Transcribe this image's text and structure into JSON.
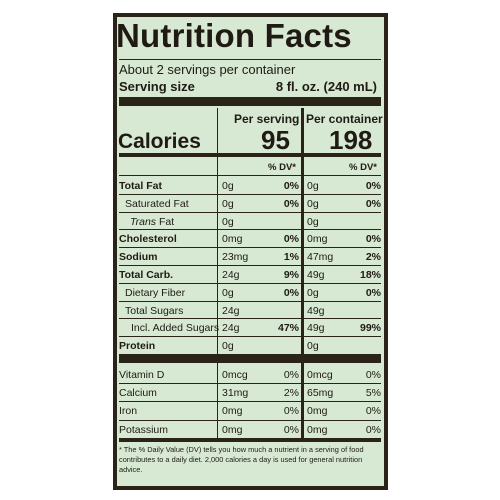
{
  "title": "Nutrition Facts",
  "servings_per_container": "About 2 servings per container",
  "serving_size_label": "Serving size",
  "serving_size_value": "8 fl. oz. (240 mL)",
  "col_headers": {
    "per_serving": "Per serving",
    "per_container": "Per container"
  },
  "calories": {
    "label": "Calories",
    "per_serving": "95",
    "per_container": "198"
  },
  "dv_header": "% DV*",
  "nutrients": [
    {
      "name": "Total Fat",
      "s_amt": "0g",
      "s_dv": "0%",
      "c_amt": "0g",
      "c_dv": "0%"
    },
    {
      "name": "Saturated Fat",
      "s_amt": "0g",
      "s_dv": "0%",
      "c_amt": "0g",
      "c_dv": "0%"
    },
    {
      "name_prefix": "Trans",
      "name": " Fat",
      "s_amt": "0g",
      "s_dv": "",
      "c_amt": "0g",
      "c_dv": ""
    },
    {
      "name": "Cholesterol",
      "s_amt": "0mg",
      "s_dv": "0%",
      "c_amt": "0mg",
      "c_dv": "0%"
    },
    {
      "name": "Sodium",
      "s_amt": "23mg",
      "s_dv": "1%",
      "c_amt": "47mg",
      "c_dv": "2%"
    },
    {
      "name": "Total Carb.",
      "s_amt": "24g",
      "s_dv": "9%",
      "c_amt": "49g",
      "c_dv": "18%"
    },
    {
      "name": "Dietary Fiber",
      "s_amt": "0g",
      "s_dv": "0%",
      "c_amt": "0g",
      "c_dv": "0%"
    },
    {
      "name": "Total Sugars",
      "s_amt": "24g",
      "s_dv": "",
      "c_amt": "49g",
      "c_dv": ""
    },
    {
      "name": "Incl. Added Sugars",
      "s_amt": "24g",
      "s_dv": "47%",
      "c_amt": "49g",
      "c_dv": "99%"
    },
    {
      "name": "Protein",
      "s_amt": "0g",
      "s_dv": "",
      "c_amt": "0g",
      "c_dv": ""
    }
  ],
  "vitamins": [
    {
      "name": "Vitamin D",
      "s_amt": "0mcg",
      "s_dv": "0%",
      "c_amt": "0mcg",
      "c_dv": "0%"
    },
    {
      "name": "Calcium",
      "s_amt": "31mg",
      "s_dv": "2%",
      "c_amt": "65mg",
      "c_dv": "5%"
    },
    {
      "name": "Iron",
      "s_amt": "0mg",
      "s_dv": "0%",
      "c_amt": "0mg",
      "c_dv": "0%"
    },
    {
      "name": "Potassium",
      "s_amt": "0mg",
      "s_dv": "0%",
      "c_amt": "0mg",
      "c_dv": "0%"
    }
  ],
  "footnote": "* The % Daily Value (DV) tells you how much a nutrient in a serving of food contributes to a daily diet. 2,000 calories a day is used for general nutrition advice.",
  "colors": {
    "panel": "#d7e8d3",
    "ink": "#2a2418"
  }
}
